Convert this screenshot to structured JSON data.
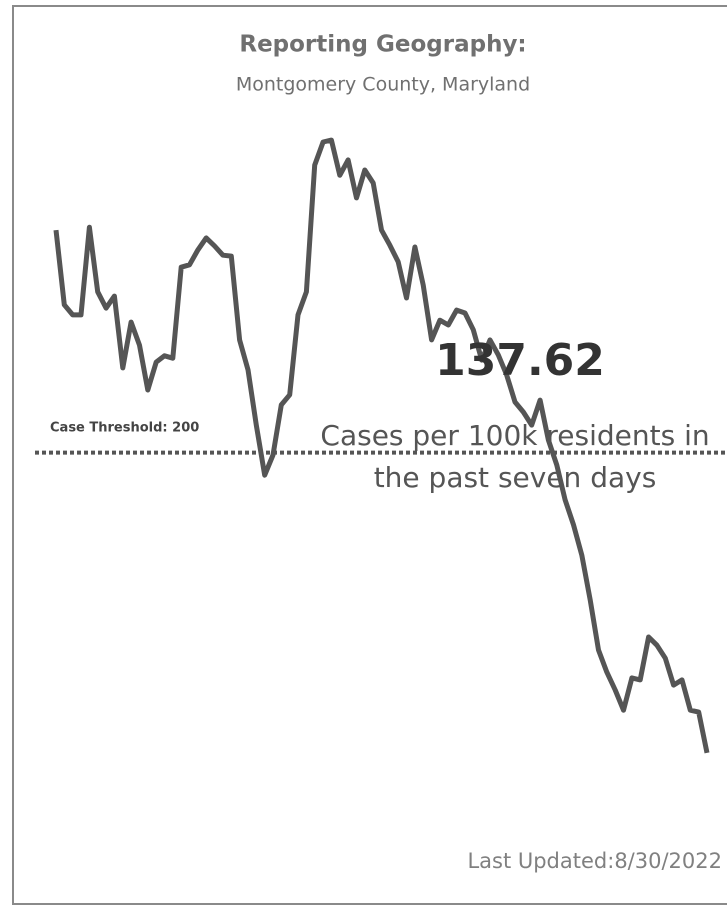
{
  "chart_data": {
    "type": "line",
    "title": "Reporting Geography:",
    "subtitle": "Montgomery County, Maryland",
    "kpi_value": 137.62,
    "kpi_caption": "Cases per 100k residents in the past seven days",
    "footer": "Last Updated:8/30/2022",
    "threshold": {
      "value": 200,
      "label": "Case Threshold: 200"
    },
    "ylim": [
      132,
      267
    ],
    "color": "#555555",
    "values": [
      246.2,
      230.7,
      228.6,
      228.6,
      246.8,
      233.4,
      230.0,
      232.5,
      217.6,
      227.1,
      222.3,
      213.0,
      218.8,
      220.1,
      219.6,
      238.5,
      239.0,
      242.1,
      244.6,
      242.9,
      241.0,
      240.8,
      223.4,
      217.2,
      205.7,
      195.3,
      199.5,
      209.9,
      212.0,
      228.6,
      233.4,
      259.7,
      264.5,
      264.9,
      257.6,
      260.8,
      252.9,
      258.7,
      256.0,
      246.2,
      243.1,
      239.6,
      232.1,
      242.7,
      234.8,
      223.4,
      227.5,
      226.5,
      229.6,
      229.0,
      225.5,
      219.2,
      223.4,
      220.3,
      216.1,
      210.5,
      208.4,
      205.7,
      210.9,
      202.6,
      197.4,
      190.2,
      185.0,
      178.7,
      169.4,
      159.0,
      154.4,
      150.7,
      146.5,
      153.2,
      152.8,
      161.7,
      160.0,
      157.3,
      151.7,
      152.8,
      146.5,
      146.1,
      137.62
    ]
  }
}
